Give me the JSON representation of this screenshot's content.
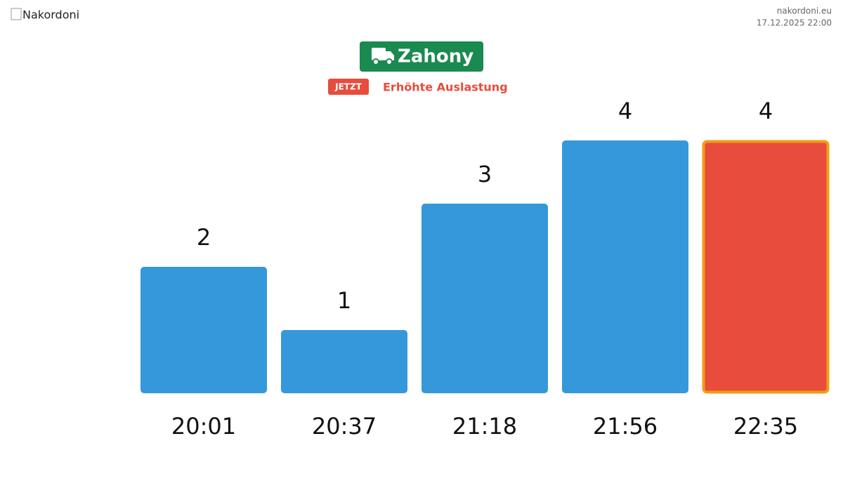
{
  "header": {
    "logo_alt": "Nakordoni",
    "site": "nakordoni.eu",
    "timestamp": "17.12.2025 22:00",
    "badge": "JETZT",
    "status": "Erhöhte Auslastung"
  },
  "chart_data": {
    "type": "bar",
    "title": "Zahony",
    "categories": [
      "20:01",
      "20:37",
      "21:18",
      "21:56",
      "22:35"
    ],
    "values": [
      2,
      1,
      3,
      4,
      4
    ],
    "colors": [
      "#3498db",
      "#3498db",
      "#3498db",
      "#3498db",
      "#e74c3c"
    ],
    "highlight": "last",
    "highlight_color": "#f39c12",
    "title_color": "#1a8a50"
  }
}
